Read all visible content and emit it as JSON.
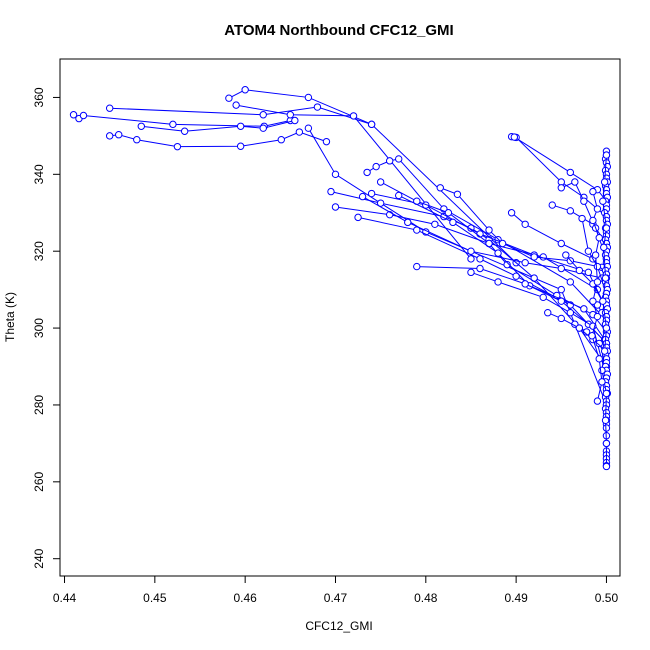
{
  "chart_data": {
    "type": "scatter",
    "title": "ATOM4 Northbound CFC12_GMI",
    "xlabel": "CFC12_GMI",
    "ylabel": "Theta (K)",
    "xlim": [
      0.4395,
      0.5015
    ],
    "ylim": [
      235.5,
      370
    ],
    "xticks": [
      "0.44",
      "0.45",
      "0.46",
      "0.47",
      "0.48",
      "0.49",
      "0.50"
    ],
    "yticks": [
      "240",
      "260",
      "280",
      "300",
      "320",
      "340",
      "360"
    ],
    "grid": false,
    "color": "#0000ff",
    "series": [
      {
        "segments": [
          [
            [
              0.441,
              355.5
            ],
            [
              0.4416,
              354.5
            ],
            [
              0.4421,
              355.3
            ],
            [
              0.452,
              353.0
            ],
            [
              0.4621,
              352.5
            ],
            [
              0.465,
              354.0
            ]
          ],
          [
            [
              0.445,
              357.2
            ],
            [
              0.462,
              355.5
            ],
            [
              0.468,
              357.5
            ],
            [
              0.474,
              353.0
            ]
          ],
          [
            [
              0.445,
              350.0
            ],
            [
              0.446,
              350.3
            ],
            [
              0.448,
              349.0
            ],
            [
              0.4525,
              347.2
            ],
            [
              0.4595,
              347.3
            ],
            [
              0.464,
              349.0
            ],
            [
              0.466,
              351.0
            ],
            [
              0.469,
              348.5
            ]
          ],
          [
            [
              0.4485,
              352.5
            ],
            [
              0.4533,
              351.2
            ],
            [
              0.4595,
              352.5
            ],
            [
              0.462,
              352.0
            ],
            [
              0.4655,
              354.0
            ]
          ],
          [
            [
              0.4582,
              359.8
            ],
            [
              0.46,
              362.0
            ],
            [
              0.467,
              360.0
            ],
            [
              0.474,
              353.0
            ],
            [
              0.49,
              317.0
            ]
          ],
          [
            [
              0.459,
              358.0
            ],
            [
              0.465,
              355.5
            ],
            [
              0.472,
              355.2
            ],
            [
              0.485,
              318.0
            ]
          ],
          [
            [
              0.467,
              352.0
            ],
            [
              0.47,
              340.0
            ],
            [
              0.48,
              325.0
            ],
            [
              0.495,
              310.0
            ],
            [
              0.5,
              280.0
            ]
          ],
          [
            [
              0.4695,
              335.5
            ],
            [
              0.475,
              332.5
            ],
            [
              0.482,
              329.0
            ],
            [
              0.485,
              326.0
            ],
            [
              0.487,
              323.0
            ],
            [
              0.492,
              313.0
            ],
            [
              0.497,
              300.0
            ],
            [
              0.5,
              290.0
            ]
          ],
          [
            [
              0.47,
              331.5
            ],
            [
              0.476,
              329.5
            ],
            [
              0.481,
              327.0
            ],
            [
              0.487,
              322.0
            ],
            [
              0.493,
              318.5
            ],
            [
              0.499,
              310.0
            ]
          ],
          [
            [
              0.4725,
              328.8
            ],
            [
              0.479,
              325.5
            ],
            [
              0.486,
              318.0
            ],
            [
              0.49,
              313.5
            ],
            [
              0.496,
              306.0
            ],
            [
              0.5,
              296.0
            ]
          ],
          [
            [
              0.473,
              334.2
            ],
            [
              0.478,
              327.5
            ],
            [
              0.485,
              320.0
            ],
            [
              0.491,
              317.0
            ],
            [
              0.495,
              315.5
            ],
            [
              0.4995,
              313.0
            ]
          ],
          [
            [
              0.4735,
              340.5
            ],
            [
              0.4745,
              342.0
            ],
            [
              0.476,
              343.5
            ],
            [
              0.477,
              344.0
            ],
            [
              0.482,
              331.0
            ],
            [
              0.488,
              323.0
            ],
            [
              0.496,
              312.0
            ],
            [
              0.5,
              302.0
            ]
          ],
          [
            [
              0.474,
              335.0
            ],
            [
              0.48,
              332.0
            ],
            [
              0.486,
              324.5
            ],
            [
              0.492,
              319.0
            ],
            [
              0.498,
              314.5
            ],
            [
              0.5,
              305.0
            ]
          ],
          [
            [
              0.475,
              338.0
            ],
            [
              0.479,
              333.0
            ],
            [
              0.4825,
              330.0
            ],
            [
              0.487,
              322.0
            ],
            [
              0.489,
              316.5
            ],
            [
              0.4945,
              308.5
            ],
            [
              0.4985,
              303.5
            ],
            [
              0.5,
              299.0
            ]
          ],
          [
            [
              0.477,
              334.5
            ],
            [
              0.483,
              327.5
            ],
            [
              0.488,
              319.5
            ],
            [
              0.4915,
              311.0
            ],
            [
              0.4975,
              305.0
            ],
            [
              0.4998,
              297.0
            ]
          ],
          [
            [
              0.4816,
              336.5
            ],
            [
              0.4835,
              334.8
            ],
            [
              0.487,
              325.5
            ],
            [
              0.4885,
              322.0
            ],
            [
              0.492,
              318.5
            ],
            [
              0.496,
              317.5
            ],
            [
              0.4995,
              315.8
            ]
          ],
          [
            [
              0.479,
              316.0
            ],
            [
              0.486,
              315.5
            ],
            [
              0.491,
              311.5
            ],
            [
              0.495,
              307.0
            ],
            [
              0.498,
              301.0
            ],
            [
              0.5,
              296.0
            ]
          ],
          [
            [
              0.485,
              314.5
            ],
            [
              0.488,
              312.0
            ],
            [
              0.493,
              308.0
            ],
            [
              0.496,
              304.0
            ],
            [
              0.4985,
              300.5
            ],
            [
              0.5,
              287.0
            ]
          ],
          [
            [
              0.4895,
              330.0
            ],
            [
              0.491,
              327.0
            ],
            [
              0.495,
              322.0
            ],
            [
              0.4985,
              318.0
            ],
            [
              0.5,
              314.0
            ]
          ],
          [
            [
              0.4895,
              349.8
            ],
            [
              0.49,
              349.6
            ],
            [
              0.495,
              338.0
            ],
            [
              0.4975,
              334.0
            ],
            [
              0.5,
              329.0
            ]
          ],
          [
            [
              0.4898,
              349.7
            ],
            [
              0.496,
              340.5
            ],
            [
              0.499,
              336.0
            ],
            [
              0.5,
              333.0
            ]
          ],
          [
            [
              0.494,
              332.0
            ],
            [
              0.496,
              330.5
            ],
            [
              0.4985,
              327.0
            ],
            [
              0.5,
              322.0
            ]
          ],
          [
            [
              0.495,
              336.5
            ],
            [
              0.4965,
              338.0
            ],
            [
              0.4975,
              333.0
            ],
            [
              0.4988,
              326.0
            ],
            [
              0.5,
              318.0
            ]
          ],
          [
            [
              0.4955,
              319.0
            ],
            [
              0.497,
              315.0
            ],
            [
              0.4985,
              311.5
            ],
            [
              0.5,
              305.0
            ]
          ],
          [
            [
              0.499,
              306.0
            ],
            [
              0.4995,
              304.0
            ],
            [
              0.5,
              300.0
            ]
          ],
          [
            [
              0.4973,
              328.5
            ],
            [
              0.498,
              320.0
            ],
            [
              0.499,
              316.0
            ],
            [
              0.5,
              309.0
            ]
          ],
          [
            [
              0.4965,
              301.0
            ],
            [
              0.4978,
              299.0
            ],
            [
              0.4992,
              296.0
            ],
            [
              0.5,
              292.0
            ]
          ],
          [
            [
              0.4935,
              304.0
            ],
            [
              0.495,
              302.5
            ],
            [
              0.497,
              300.0
            ],
            [
              0.4985,
              297.0
            ],
            [
              0.5,
              294.0
            ]
          ],
          [
            [
              0.5,
              346.0
            ],
            [
              0.5,
              345.0
            ],
            [
              0.4999,
              344.0
            ],
            [
              0.5,
              343.0
            ],
            [
              0.5001,
              342.0
            ],
            [
              0.4999,
              341.0
            ],
            [
              0.5,
              340.0
            ],
            [
              0.5,
              339.0
            ],
            [
              0.5001,
              338.0
            ],
            [
              0.4999,
              337.0
            ],
            [
              0.5,
              336.0
            ],
            [
              0.5,
              335.0
            ],
            [
              0.5001,
              334.0
            ],
            [
              0.4999,
              333.0
            ],
            [
              0.5,
              332.0
            ],
            [
              0.5,
              331.0
            ],
            [
              0.4998,
              330.0
            ],
            [
              0.5,
              329.0
            ],
            [
              0.5,
              328.0
            ],
            [
              0.5001,
              327.0
            ],
            [
              0.4999,
              326.0
            ],
            [
              0.5,
              325.0
            ],
            [
              0.5,
              324.0
            ],
            [
              0.4999,
              323.0
            ],
            [
              0.5,
              322.0
            ],
            [
              0.5001,
              321.0
            ],
            [
              0.5,
              320.0
            ],
            [
              0.4999,
              319.0
            ],
            [
              0.5,
              318.0
            ],
            [
              0.5,
              317.0
            ],
            [
              0.5001,
              316.0
            ],
            [
              0.4999,
              315.0
            ],
            [
              0.5,
              314.0
            ],
            [
              0.5,
              313.0
            ],
            [
              0.4999,
              312.0
            ],
            [
              0.5,
              311.0
            ],
            [
              0.5001,
              310.0
            ],
            [
              0.5,
              309.0
            ],
            [
              0.4999,
              308.0
            ],
            [
              0.5,
              307.0
            ],
            [
              0.5,
              306.0
            ],
            [
              0.5001,
              305.0
            ],
            [
              0.4999,
              304.0
            ],
            [
              0.5,
              303.0
            ],
            [
              0.5,
              302.0
            ],
            [
              0.4999,
              301.0
            ],
            [
              0.5,
              300.0
            ],
            [
              0.5001,
              299.0
            ],
            [
              0.5,
              298.0
            ],
            [
              0.4999,
              297.0
            ],
            [
              0.5,
              296.0
            ],
            [
              0.5,
              295.0
            ],
            [
              0.5001,
              294.0
            ],
            [
              0.4999,
              293.0
            ],
            [
              0.5,
              292.0
            ],
            [
              0.5,
              291.0
            ],
            [
              0.4999,
              290.0
            ],
            [
              0.5,
              289.0
            ],
            [
              0.5001,
              288.0
            ],
            [
              0.5,
              287.0
            ],
            [
              0.4999,
              286.0
            ],
            [
              0.5,
              285.0
            ],
            [
              0.5,
              284.0
            ],
            [
              0.5001,
              283.0
            ],
            [
              0.4999,
              282.0
            ],
            [
              0.5,
              281.0
            ],
            [
              0.5,
              280.0
            ],
            [
              0.4999,
              279.0
            ],
            [
              0.5,
              278.0
            ],
            [
              0.5,
              277.0
            ],
            [
              0.5,
              276.0
            ],
            [
              0.5,
              275.0
            ],
            [
              0.5,
              274.0
            ],
            [
              0.5,
              272.0
            ],
            [
              0.5,
              270.0
            ],
            [
              0.5,
              268.0
            ],
            [
              0.5,
              267.0
            ],
            [
              0.5,
              266.0
            ],
            [
              0.5,
              265.0
            ],
            [
              0.5,
              264.2
            ]
          ],
          [
            [
              0.5,
              345.0
            ],
            [
              0.4998,
              338.0
            ],
            [
              0.4996,
              333.0
            ],
            [
              0.5,
              326.0
            ],
            [
              0.4997,
              321.0
            ],
            [
              0.4999,
              313.0
            ],
            [
              0.4996,
              307.0
            ],
            [
              0.5,
              300.0
            ],
            [
              0.4998,
              294.0
            ],
            [
              0.4995,
              289.0
            ],
            [
              0.5,
              283.0
            ],
            [
              0.4999,
              276.0
            ],
            [
              0.5,
              270.0
            ],
            [
              0.5,
              264.0
            ]
          ],
          [
            [
              0.4985,
              335.5
            ],
            [
              0.499,
              331.0
            ],
            [
              0.4985,
              328.0
            ],
            [
              0.4992,
              323.5
            ],
            [
              0.4988,
              319.0
            ],
            [
              0.499,
              312.0
            ],
            [
              0.4985,
              307.0
            ],
            [
              0.499,
              303.0
            ],
            [
              0.4984,
              298.0
            ],
            [
              0.4992,
              292.0
            ],
            [
              0.4995,
              286.0
            ],
            [
              0.499,
              281.0
            ]
          ]
        ]
      }
    ]
  }
}
